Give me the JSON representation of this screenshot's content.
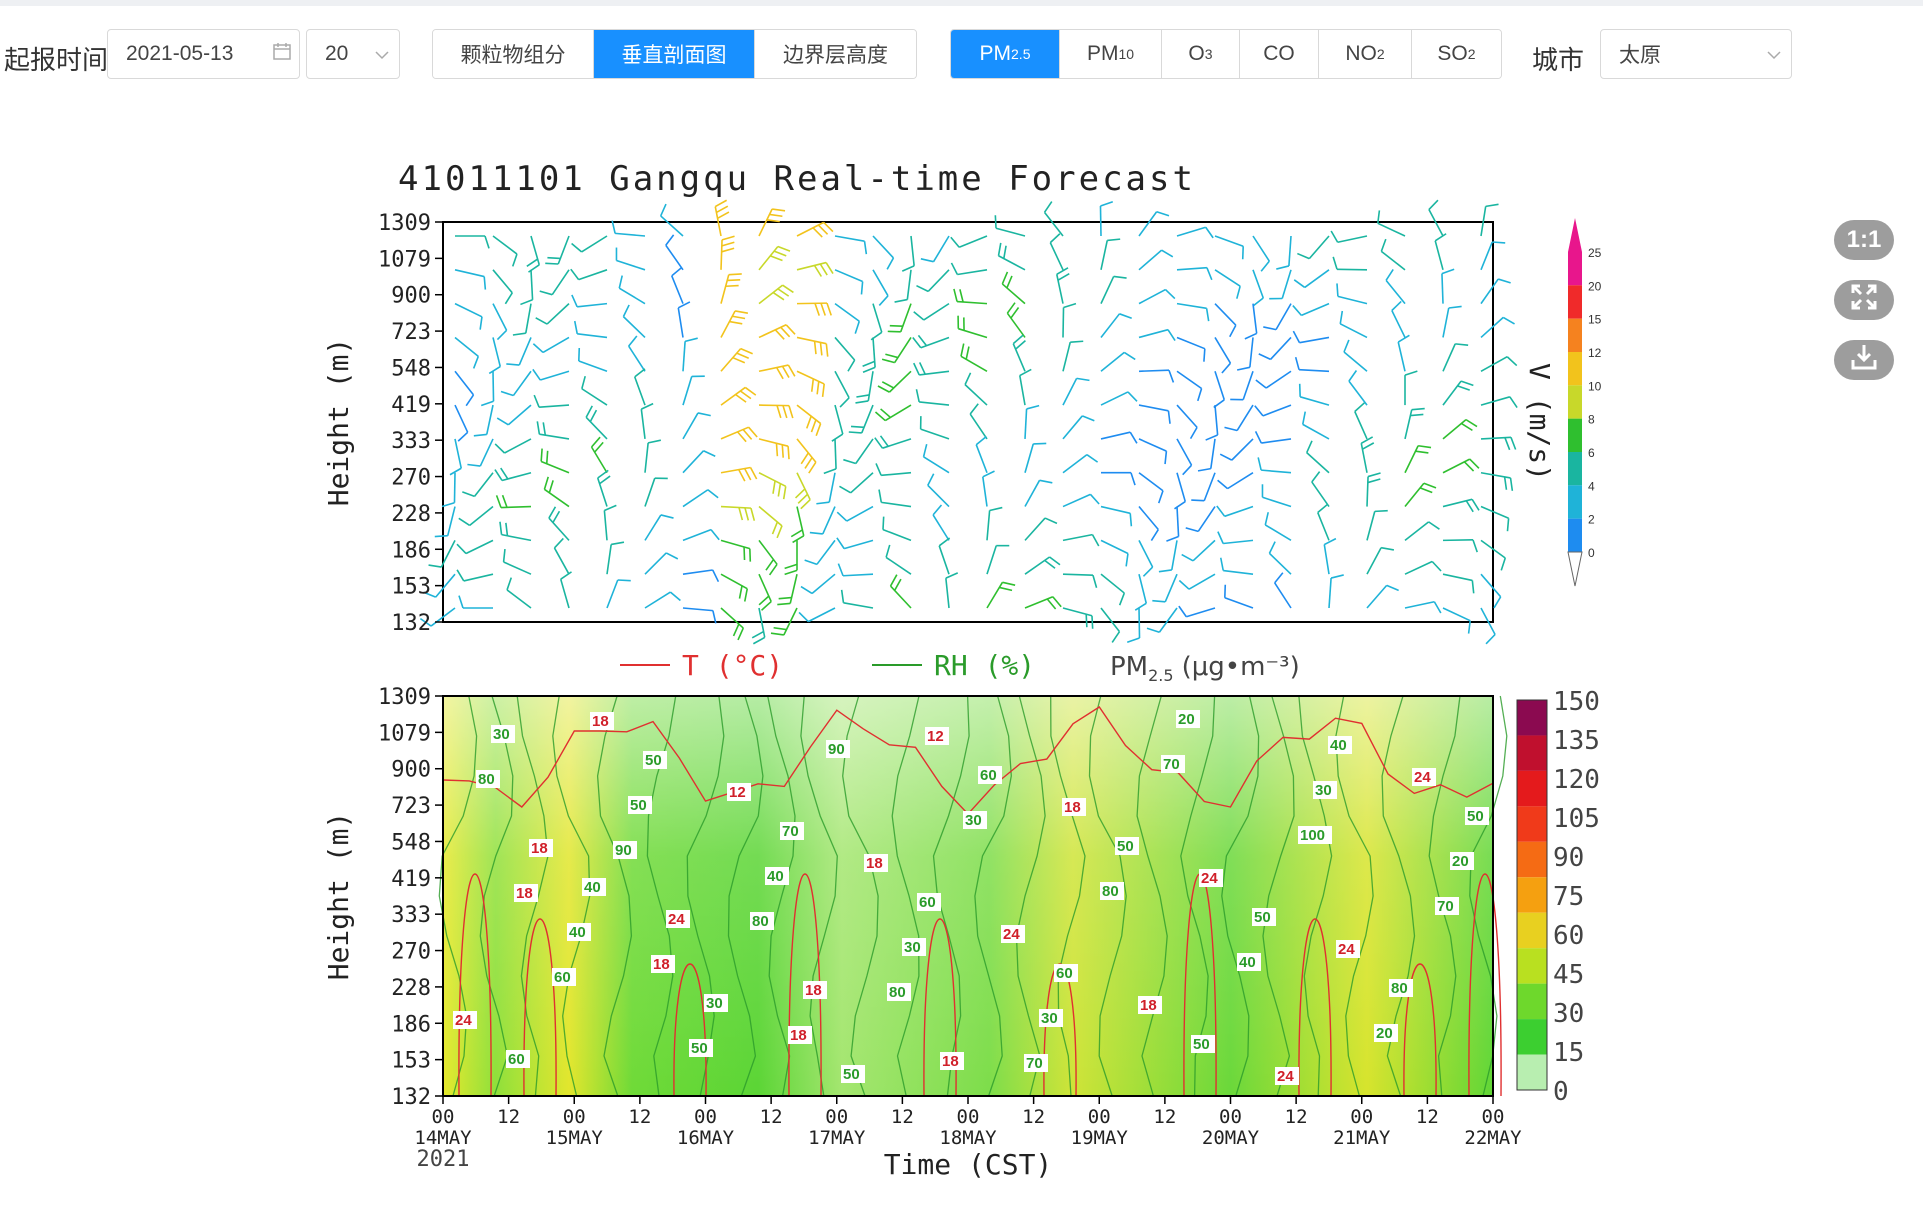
{
  "toolbar": {
    "init_time_label": "起报时间",
    "date_value": "2021-05-13",
    "date_icon": "calendar-icon",
    "hour_value": "20",
    "view_tabs": [
      "颗粒物组分",
      "垂直剖面图",
      "边界层高度"
    ],
    "active_view": "垂直剖面图",
    "pollutant_tabs": [
      "PM2.5",
      "PM10",
      "O3",
      "CO",
      "NO2",
      "SO2"
    ],
    "active_pollutant": "PM2.5",
    "city_label": "城市",
    "city_value": "太原"
  },
  "side_buttons": {
    "ratio_label": "1:1",
    "fullscreen_icon": "fullscreen-icon",
    "download_icon": "download-icon"
  },
  "figure": {
    "title": "41011101 Gangqu Real-time Forecast",
    "height_label": "Height (m)",
    "height_ticks": [
      "1309",
      "1079",
      "900",
      "723",
      "548",
      "419",
      "333",
      "270",
      "228",
      "186",
      "153",
      "132"
    ],
    "wind_colorbar_label": "V (m/s)",
    "wind_colorbar_ticks": [
      "25",
      "20",
      "15",
      "12",
      "10",
      "8",
      "6",
      "4",
      "2",
      "0"
    ],
    "wind_colorbar_colors": [
      "#e8168c",
      "#f02a2a",
      "#f5821f",
      "#f2c31c",
      "#c8d82a",
      "#2fbf2f",
      "#1ab5a0",
      "#1fb3d8",
      "#1e8cf0"
    ],
    "legend_t": "T (°C)",
    "legend_rh": "RH (%)",
    "legend_pm": "PM",
    "legend_pm_sub": "2.5",
    "legend_pm_unit": "(μg•m⁻³)",
    "pm_colorbar_ticks": [
      "150",
      "135",
      "120",
      "105",
      "90",
      "75",
      "60",
      "45",
      "30",
      "15",
      "0"
    ],
    "pm_colorbar_colors": [
      "#8b0a50",
      "#c0102e",
      "#e41a1c",
      "#f03a1a",
      "#f56b14",
      "#f5a010",
      "#e8d020",
      "#b9e020",
      "#6ed82c",
      "#3ccf30",
      "#b8eeb0"
    ],
    "time_ticks": [
      {
        "hour": "00",
        "day": "14MAY",
        "year": "2021"
      },
      {
        "hour": "12"
      },
      {
        "hour": "00",
        "day": "15MAY"
      },
      {
        "hour": "12"
      },
      {
        "hour": "00",
        "day": "16MAY"
      },
      {
        "hour": "12"
      },
      {
        "hour": "00",
        "day": "17MAY"
      },
      {
        "hour": "12"
      },
      {
        "hour": "00",
        "day": "18MAY"
      },
      {
        "hour": "12"
      },
      {
        "hour": "00",
        "day": "19MAY"
      },
      {
        "hour": "12"
      },
      {
        "hour": "00",
        "day": "20MAY"
      },
      {
        "hour": "12"
      },
      {
        "hour": "00",
        "day": "21MAY"
      },
      {
        "hour": "12"
      },
      {
        "hour": "00",
        "day": "22MAY"
      }
    ],
    "time_label": "Time (CST)",
    "t_contour_labels": [
      "18",
      "18",
      "18",
      "12",
      "18",
      "24",
      "24",
      "24",
      "18",
      "12",
      "18",
      "24",
      "18",
      "24",
      "24",
      "18",
      "24",
      "18",
      "18"
    ],
    "rh_contour_labels": [
      "80",
      "90",
      "80",
      "80",
      "70",
      "70",
      "100",
      "70",
      "60",
      "50",
      "90",
      "30",
      "80",
      "40",
      "20",
      "30",
      "50",
      "40",
      "30",
      "30",
      "20",
      "30",
      "20",
      "40",
      "30",
      "50",
      "60",
      "50",
      "50",
      "80",
      "60",
      "50",
      "70",
      "60",
      "60",
      "50",
      "40",
      "50",
      "40"
    ]
  }
}
